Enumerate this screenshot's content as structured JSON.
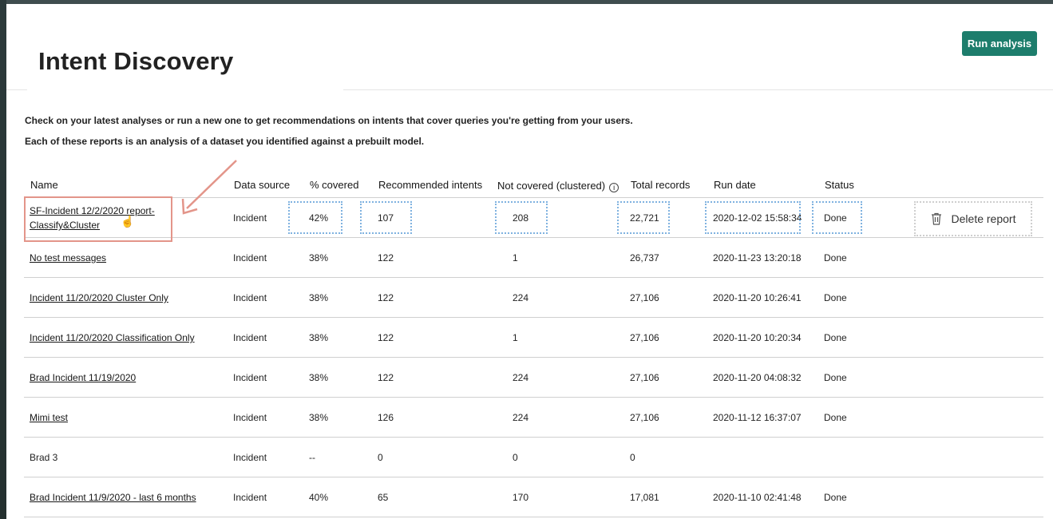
{
  "header": {
    "title": "Intent Discovery",
    "run_button": "Run analysis"
  },
  "description": {
    "line1": "Check on your latest analyses or run a new one to get recommendations on intents that cover queries you're getting from your users.",
    "line2": "Each of these reports is an analysis of a dataset you identified against a prebuilt model."
  },
  "table": {
    "columns": {
      "name": "Name",
      "source": "Data source",
      "covered": "% covered",
      "recommended": "Recommended intents",
      "not_covered": "Not covered (clustered)",
      "total": "Total records",
      "run_date": "Run date",
      "status": "Status"
    },
    "info_icon": "i",
    "delete_label": "Delete report",
    "rows": [
      {
        "name": "SF-Incident 12/2/2020 report-Classify&Cluster",
        "source": "Incident",
        "covered": "42%",
        "recommended": "107",
        "not_covered": "208",
        "total": "22,721",
        "run_date": "2020-12-02 15:58:34",
        "status": "Done"
      },
      {
        "name": "No test messages",
        "source": "Incident",
        "covered": "38%",
        "recommended": "122",
        "not_covered": "1",
        "total": "26,737",
        "run_date": "2020-11-23 13:20:18",
        "status": "Done"
      },
      {
        "name": "Incident 11/20/2020 Cluster Only",
        "source": "Incident",
        "covered": "38%",
        "recommended": "122",
        "not_covered": "224",
        "total": "27,106",
        "run_date": "2020-11-20 10:26:41",
        "status": "Done"
      },
      {
        "name": "Incident 11/20/2020 Classification Only",
        "source": "Incident",
        "covered": "38%",
        "recommended": "122",
        "not_covered": "1",
        "total": "27,106",
        "run_date": "2020-11-20 10:20:34",
        "status": "Done"
      },
      {
        "name": "Brad Incident 11/19/2020",
        "source": "Incident",
        "covered": "38%",
        "recommended": "122",
        "not_covered": "224",
        "total": "27,106",
        "run_date": "2020-11-20 04:08:32",
        "status": "Done"
      },
      {
        "name": "Mimi test",
        "source": "Incident",
        "covered": "38%",
        "recommended": "126",
        "not_covered": "224",
        "total": "27,106",
        "run_date": "2020-11-12 16:37:07",
        "status": "Done"
      },
      {
        "name": "Brad 3",
        "source": "Incident",
        "covered": "--",
        "recommended": "0",
        "not_covered": "0",
        "total": "0",
        "run_date": "",
        "status": ""
      },
      {
        "name": "Brad Incident 11/9/2020 - last 6 months",
        "source": "Incident",
        "covered": "40%",
        "recommended": "65",
        "not_covered": "170",
        "total": "17,081",
        "run_date": "2020-11-10 02:41:48",
        "status": "Done"
      }
    ]
  },
  "colors": {
    "accent": "#1d7d6c",
    "highlight": "#e3958a",
    "dotted_focus": "#7fb2e0"
  }
}
